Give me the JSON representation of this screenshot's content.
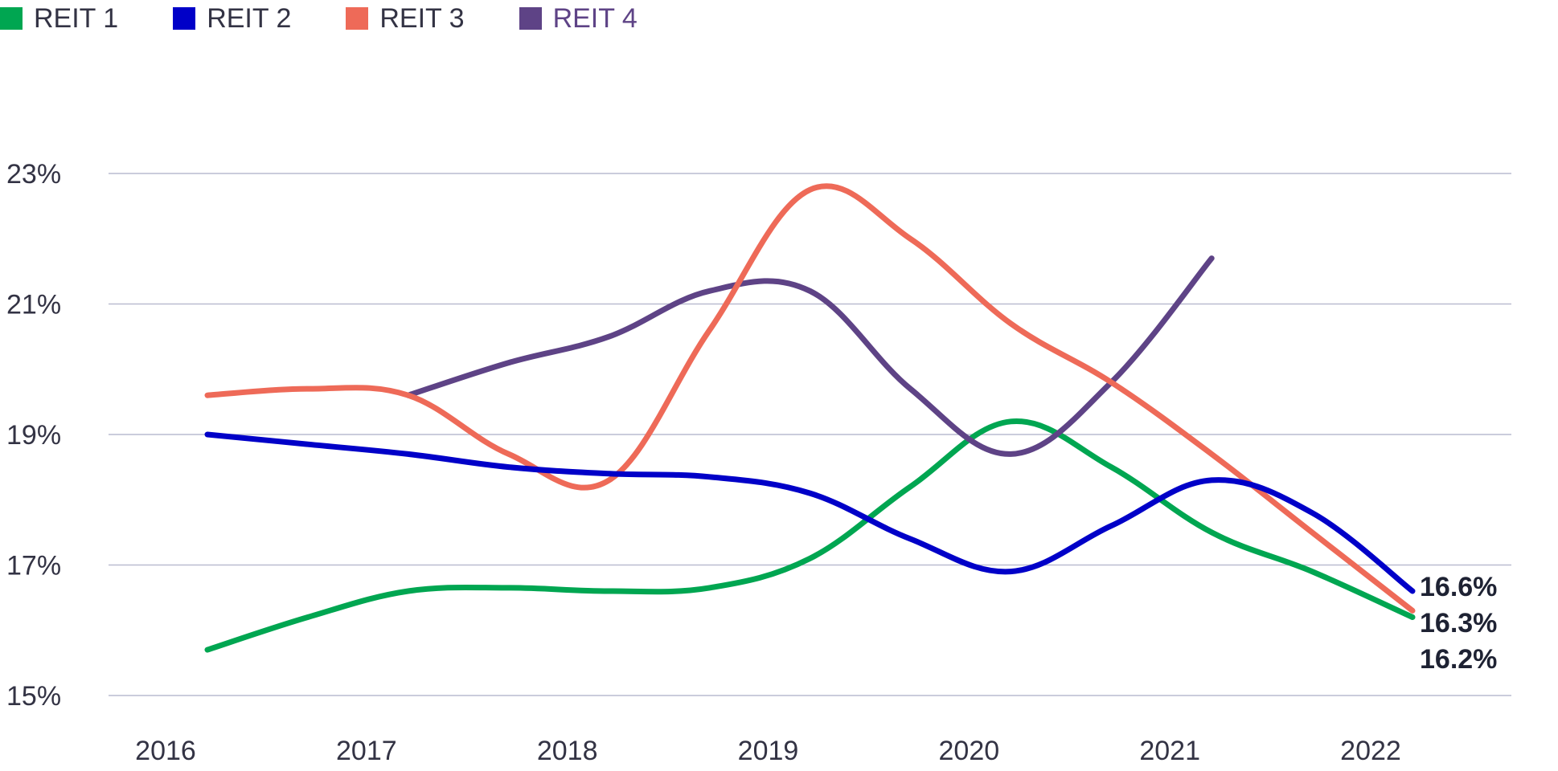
{
  "chart_data": {
    "type": "line",
    "title": "",
    "xlabel": "",
    "ylabel": "",
    "categories": [
      "2016",
      "2017",
      "2018",
      "2019",
      "2020",
      "2021",
      "2022"
    ],
    "x": [
      2016,
      2016.5,
      2017,
      2017.5,
      2018,
      2018.5,
      2019,
      2019.5,
      2020,
      2020.5,
      2021,
      2021.5,
      2022
    ],
    "ylim": [
      15,
      23
    ],
    "yticks": [
      15,
      17,
      19,
      21,
      23
    ],
    "ytick_labels": [
      "15%",
      "17%",
      "19%",
      "21%",
      "23%"
    ],
    "grid": true,
    "legend_position": "top-left",
    "series": [
      {
        "name": "REIT 1",
        "color": "#00a651",
        "points": [
          [
            2016,
            15.7
          ],
          [
            2016.5,
            16.2
          ],
          [
            2017,
            16.6
          ],
          [
            2017.5,
            16.65
          ],
          [
            2018,
            16.6
          ],
          [
            2018.5,
            16.65
          ],
          [
            2019,
            17.1
          ],
          [
            2019.5,
            18.2
          ],
          [
            2020,
            19.2
          ],
          [
            2020.5,
            18.5
          ],
          [
            2021,
            17.5
          ],
          [
            2021.5,
            16.9
          ],
          [
            2022,
            16.2
          ]
        ],
        "end_label": "16.2%"
      },
      {
        "name": "REIT 2",
        "color": "#0000c8",
        "points": [
          [
            2016,
            19.0
          ],
          [
            2016.5,
            18.85
          ],
          [
            2017,
            18.7
          ],
          [
            2017.5,
            18.5
          ],
          [
            2018,
            18.4
          ],
          [
            2018.5,
            18.35
          ],
          [
            2019,
            18.1
          ],
          [
            2019.5,
            17.4
          ],
          [
            2020,
            16.9
          ],
          [
            2020.5,
            17.6
          ],
          [
            2021,
            18.3
          ],
          [
            2021.5,
            17.8
          ],
          [
            2022,
            16.6
          ]
        ],
        "end_label": "16.6%"
      },
      {
        "name": "REIT 3",
        "color": "#ee6a58",
        "points": [
          [
            2016,
            19.6
          ],
          [
            2016.5,
            19.7
          ],
          [
            2017,
            19.6
          ],
          [
            2017.5,
            18.7
          ],
          [
            2018,
            18.3
          ],
          [
            2018.5,
            20.6
          ],
          [
            2019,
            22.75
          ],
          [
            2019.5,
            22.0
          ],
          [
            2020,
            20.7
          ],
          [
            2020.5,
            19.8
          ],
          [
            2021,
            18.7
          ],
          [
            2021.5,
            17.5
          ],
          [
            2022,
            16.3
          ]
        ],
        "end_label": "16.3%"
      },
      {
        "name": "REIT 4",
        "color": "#5e4386",
        "points": [
          [
            2017,
            19.6
          ],
          [
            2017.5,
            20.1
          ],
          [
            2018,
            20.5
          ],
          [
            2018.5,
            21.2
          ],
          [
            2019,
            21.2
          ],
          [
            2019.5,
            19.7
          ],
          [
            2020,
            18.7
          ],
          [
            2020.5,
            19.8
          ],
          [
            2021,
            21.7
          ]
        ],
        "end_label": ""
      }
    ]
  }
}
